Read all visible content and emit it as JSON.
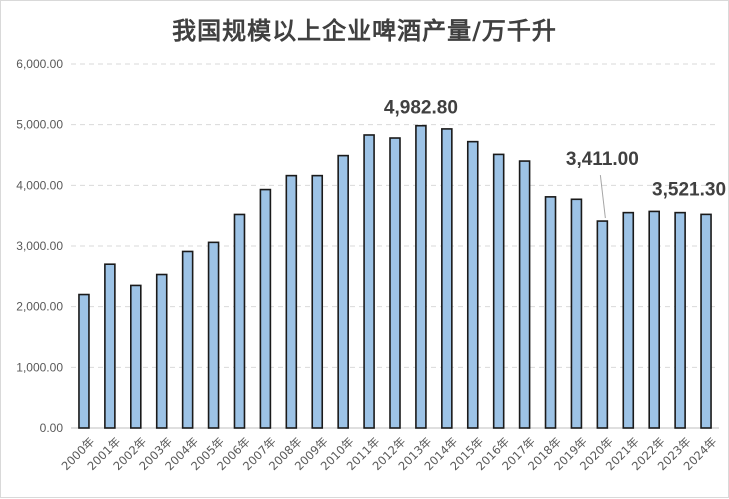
{
  "chart_data": {
    "type": "bar",
    "title": "我国规模以上企业啤酒产量/万千升",
    "xlabel": "",
    "ylabel": "",
    "ylim": [
      0,
      6000
    ],
    "yticks": [
      "0.00",
      "1,000.00",
      "2,000.00",
      "3,000.00",
      "4,000.00",
      "5,000.00",
      "6,000.00"
    ],
    "ytick_values": [
      0,
      1000,
      2000,
      3000,
      4000,
      5000,
      6000
    ],
    "grid": true,
    "categories": [
      "2000年",
      "2001年",
      "2002年",
      "2003年",
      "2004年",
      "2005年",
      "2006年",
      "2007年",
      "2008年",
      "2009年",
      "2010年",
      "2011年",
      "2012年",
      "2013年",
      "2014年",
      "2015年",
      "2016年",
      "2017年",
      "2018年",
      "2019年",
      "2020年",
      "2021年",
      "2022年",
      "2023年",
      "2024年"
    ],
    "values": [
      2200,
      2700,
      2350,
      2530,
      2910,
      3060,
      3520,
      3930,
      4160,
      4160,
      4490,
      4830,
      4780,
      4982.8,
      4930,
      4720,
      4510,
      4400,
      3810,
      3770,
      3411,
      3550,
      3570,
      3550,
      3521.3
    ],
    "annotations": [
      {
        "category": "2013年",
        "label": "4,982.80"
      },
      {
        "category": "2020年",
        "label": "3,411.00"
      },
      {
        "category": "2024年",
        "label": "3,521.30"
      }
    ],
    "bar_color": "#9dc3e6",
    "bar_edge_color": "#1a1a1a",
    "grid_color": "#d9d9d9"
  }
}
